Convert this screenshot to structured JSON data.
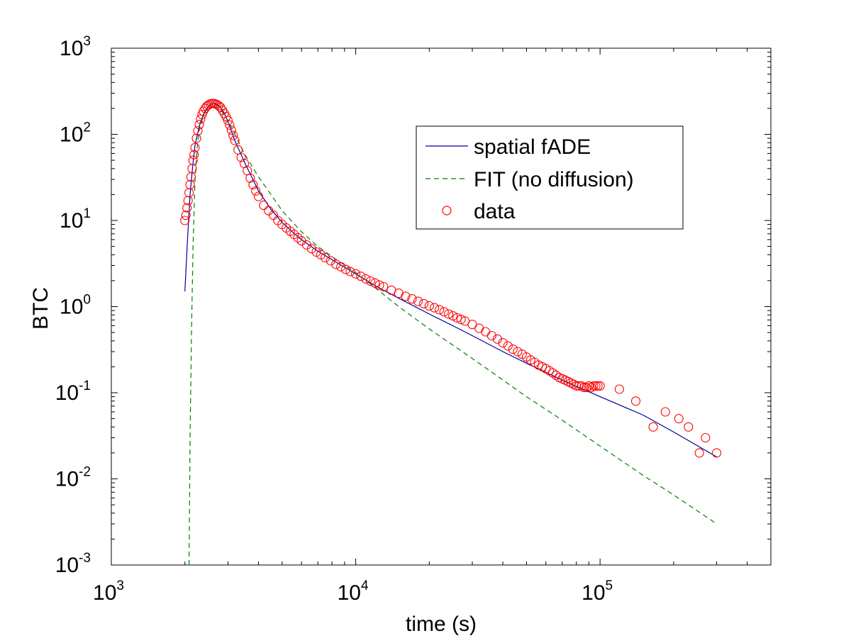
{
  "chart_data": {
    "type": "scatter",
    "title": "",
    "xlabel": "time (s)",
    "ylabel": "BTC",
    "xscale": "log",
    "yscale": "log",
    "xlim": [
      1000,
      500000
    ],
    "ylim": [
      0.001,
      1000
    ],
    "x_ticks": [
      {
        "value": 1000,
        "base": "10",
        "exp": "3"
      },
      {
        "value": 10000,
        "base": "10",
        "exp": "4"
      },
      {
        "value": 100000,
        "base": "10",
        "exp": "5"
      }
    ],
    "y_ticks": [
      {
        "value": 0.001,
        "base": "10",
        "exp": "-3"
      },
      {
        "value": 0.01,
        "base": "10",
        "exp": "-2"
      },
      {
        "value": 0.1,
        "base": "10",
        "exp": "-1"
      },
      {
        "value": 1,
        "base": "10",
        "exp": "0"
      },
      {
        "value": 10,
        "base": "10",
        "exp": "1"
      },
      {
        "value": 100,
        "base": "10",
        "exp": "2"
      },
      {
        "value": 1000,
        "base": "10",
        "exp": "3"
      }
    ],
    "grid": false,
    "legend_position": "top-right",
    "colors": {
      "fade": "#0000a0",
      "fit": "#008000",
      "data": "#ff0000"
    },
    "series": [
      {
        "name": "spatial fADE",
        "style": "solid",
        "x": [
          2000,
          2050,
          2100,
          2150,
          2200,
          2300,
          2400,
          2500,
          2600,
          2700,
          2800,
          2900,
          3000,
          3200,
          3500,
          4000,
          4500,
          5000,
          5500,
          6000,
          7000,
          8000,
          10000,
          12000,
          15000,
          20000,
          25000,
          30000,
          40000,
          50000,
          70000,
          100000,
          150000,
          200000,
          300000
        ],
        "y": [
          1.5,
          6,
          20,
          42,
          75,
          130,
          180,
          213,
          228,
          225,
          205,
          175,
          140,
          85,
          48,
          22,
          13.5,
          9.5,
          7.4,
          6.0,
          4.4,
          3.5,
          2.4,
          1.75,
          1.25,
          0.82,
          0.6,
          0.46,
          0.3,
          0.22,
          0.14,
          0.09,
          0.055,
          0.035,
          0.018
        ]
      },
      {
        "name": "FIT (no diffusion)",
        "style": "dashed",
        "x": [
          2080,
          2100,
          2130,
          2160,
          2200,
          2250,
          2300,
          2400,
          2500,
          2600,
          2700,
          2800,
          3000,
          3200,
          3500,
          4000,
          4500,
          5000,
          6000,
          7000,
          8000,
          10000,
          15000,
          20000,
          30000,
          50000,
          70000,
          100000,
          150000,
          200000,
          300000
        ],
        "y": [
          0.001,
          0.03,
          0.6,
          5,
          30,
          75,
          120,
          175,
          212,
          225,
          218,
          195,
          145,
          100,
          60,
          32,
          20,
          13,
          7.4,
          5.0,
          3.8,
          2.5,
          1.0,
          0.55,
          0.25,
          0.09,
          0.048,
          0.024,
          0.011,
          0.0065,
          0.003
        ]
      },
      {
        "name": "data",
        "style": "marker-circle",
        "x": [
          2000,
          2020,
          2040,
          2060,
          2080,
          2100,
          2120,
          2140,
          2160,
          2180,
          2200,
          2230,
          2260,
          2290,
          2320,
          2350,
          2380,
          2420,
          2460,
          2500,
          2540,
          2580,
          2620,
          2660,
          2700,
          2750,
          2800,
          2850,
          2900,
          2950,
          3000,
          3050,
          3100,
          3150,
          3200,
          3300,
          3400,
          3500,
          3600,
          3700,
          3800,
          3900,
          4000,
          4200,
          4400,
          4600,
          4800,
          5000,
          5200,
          5400,
          5600,
          5800,
          6000,
          6300,
          6600,
          6900,
          7200,
          7500,
          7900,
          8300,
          8700,
          9100,
          9500,
          10000,
          10500,
          11000,
          11500,
          12000,
          12500,
          13000,
          14000,
          15000,
          16000,
          17000,
          18000,
          19000,
          20000,
          21000,
          22000,
          23000,
          24000,
          25000,
          26000,
          27000,
          28000,
          30000,
          32000,
          34000,
          36000,
          38000,
          40000,
          42000,
          44000,
          46000,
          48000,
          50000,
          52000,
          54000,
          56000,
          58000,
          60000,
          62000,
          64000,
          66000,
          68000,
          70000,
          72000,
          74000,
          76000,
          78000,
          80000,
          82000,
          84000,
          86000,
          88000,
          90000,
          92000,
          94000,
          96000,
          98000,
          100000,
          120000,
          140000,
          165000,
          185000,
          210000,
          230000,
          255000,
          270000,
          300000
        ],
        "y": [
          10,
          11.5,
          14,
          17,
          21,
          26,
          32,
          40,
          50,
          58,
          70,
          90,
          110,
          130,
          150,
          170,
          185,
          200,
          212,
          220,
          226,
          228,
          228,
          226,
          222,
          215,
          205,
          190,
          175,
          160,
          145,
          128,
          112,
          97,
          85,
          66,
          54,
          46,
          38,
          31,
          26,
          22,
          19,
          15,
          13,
          11.5,
          10,
          9,
          8.2,
          7.5,
          6.9,
          6.3,
          5.8,
          5.2,
          4.7,
          4.3,
          4.0,
          3.7,
          3.4,
          3.1,
          2.9,
          2.7,
          2.55,
          2.4,
          2.25,
          2.1,
          1.98,
          1.88,
          1.78,
          1.7,
          1.55,
          1.43,
          1.32,
          1.23,
          1.15,
          1.08,
          1.02,
          0.97,
          0.92,
          0.87,
          0.82,
          0.78,
          0.74,
          0.71,
          0.68,
          0.62,
          0.56,
          0.51,
          0.46,
          0.42,
          0.38,
          0.35,
          0.32,
          0.3,
          0.28,
          0.26,
          0.24,
          0.225,
          0.21,
          0.2,
          0.19,
          0.18,
          0.17,
          0.16,
          0.15,
          0.145,
          0.14,
          0.135,
          0.13,
          0.125,
          0.12,
          0.12,
          0.12,
          0.115,
          0.115,
          0.12,
          0.115,
          0.12,
          0.12,
          0.12,
          0.12,
          0.11,
          0.08,
          0.04,
          0.06,
          0.05,
          0.04,
          0.02,
          0.03,
          0.02
        ]
      }
    ]
  }
}
